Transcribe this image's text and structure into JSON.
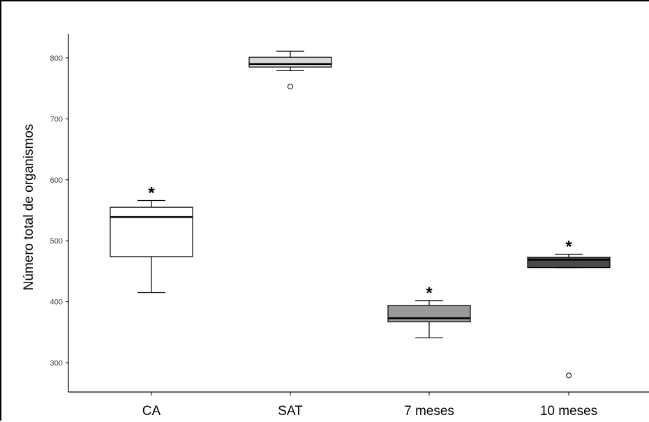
{
  "chart_data": {
    "type": "box",
    "title": "",
    "xlabel": "",
    "ylabel": "Número total de organismos",
    "ylim": [
      250,
      840
    ],
    "yticks": [
      300,
      400,
      500,
      600,
      700,
      800
    ],
    "grid": false,
    "legend": "none",
    "categories": [
      "CA",
      "SAT",
      "7 meses",
      "10 meses"
    ],
    "boxes": [
      {
        "category": "CA",
        "whisker_low": 415,
        "q1": 474,
        "median": 539,
        "q3": 555,
        "whisker_high": 566,
        "outliers": [],
        "fill": "#ffffff",
        "annotation": "*"
      },
      {
        "category": "SAT",
        "whisker_low": 779,
        "q1": 785,
        "median": 790,
        "q3": 801,
        "whisker_high": 811,
        "outliers": [
          753
        ],
        "fill": "#d9d9d9",
        "annotation": ""
      },
      {
        "category": "7 meses",
        "whisker_low": 341,
        "q1": 367,
        "median": 373,
        "q3": 394,
        "whisker_high": 402,
        "outliers": [],
        "fill": "#999999",
        "annotation": "*"
      },
      {
        "category": "10 meses",
        "whisker_low": 456,
        "q1": 456,
        "median": 469,
        "q3": 473,
        "whisker_high": 478,
        "outliers": [
          279
        ],
        "fill": "#4a4a4a",
        "annotation": "*"
      }
    ]
  }
}
